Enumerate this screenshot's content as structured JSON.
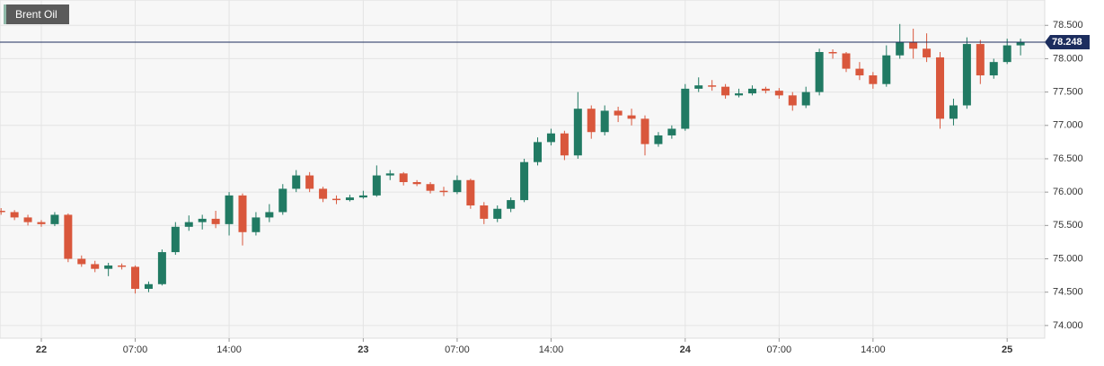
{
  "chart_data": {
    "type": "candlestick",
    "title": "Brent Oil",
    "x": [
      -3,
      -2,
      -1,
      0,
      1,
      2,
      3,
      4,
      5,
      6,
      7,
      8,
      9,
      10,
      11,
      12,
      13,
      14,
      15,
      16,
      17,
      18,
      19,
      20,
      21,
      22,
      23,
      24,
      25,
      26,
      27,
      28,
      29,
      30,
      31,
      32,
      33,
      34,
      35,
      36,
      37,
      38,
      39,
      40,
      41,
      42,
      43,
      44,
      45,
      46,
      47,
      48,
      49,
      50,
      51,
      52,
      53,
      54,
      55,
      56,
      57,
      58,
      59,
      60,
      61,
      62,
      63,
      64,
      65,
      66,
      67,
      68,
      69,
      70,
      71,
      72,
      73
    ],
    "open": [
      75.72,
      75.7,
      75.62,
      75.55,
      75.52,
      75.66,
      75.0,
      74.92,
      74.85,
      74.9,
      74.88,
      74.55,
      74.62,
      75.1,
      75.48,
      75.55,
      75.6,
      75.52,
      75.95,
      75.4,
      75.62,
      75.7,
      76.05,
      76.25,
      76.05,
      75.9,
      75.88,
      75.92,
      75.95,
      76.25,
      76.28,
      76.15,
      76.12,
      76.02,
      76.0,
      76.18,
      75.8,
      75.6,
      75.75,
      75.88,
      76.45,
      76.75,
      76.88,
      76.55,
      77.25,
      76.9,
      77.22,
      77.15,
      77.1,
      76.72,
      76.85,
      76.95,
      77.55,
      77.6,
      77.58,
      77.45,
      77.48,
      77.55,
      77.52,
      77.45,
      77.3,
      77.5,
      78.1,
      78.08,
      77.85,
      77.75,
      77.62,
      78.05,
      78.25,
      78.15,
      78.02,
      77.1,
      77.3,
      78.22,
      77.75,
      77.95,
      78.2
    ],
    "high": [
      75.76,
      75.73,
      75.66,
      75.58,
      75.7,
      75.68,
      75.05,
      74.97,
      74.94,
      74.93,
      74.9,
      74.66,
      75.14,
      75.55,
      75.65,
      75.66,
      75.72,
      76.0,
      75.98,
      75.7,
      75.82,
      76.12,
      76.33,
      76.3,
      76.08,
      75.95,
      75.96,
      76.02,
      76.4,
      76.33,
      76.3,
      76.18,
      76.15,
      76.08,
      76.25,
      76.2,
      75.85,
      75.8,
      75.92,
      76.5,
      76.82,
      76.95,
      76.92,
      77.5,
      77.3,
      77.3,
      77.28,
      77.25,
      77.15,
      76.9,
      77.0,
      77.62,
      77.72,
      77.68,
      77.62,
      77.55,
      77.6,
      77.58,
      77.56,
      77.5,
      77.58,
      78.15,
      78.14,
      78.1,
      77.95,
      77.8,
      78.2,
      78.52,
      78.45,
      78.38,
      78.1,
      77.4,
      78.32,
      78.28,
      78.0,
      78.3,
      78.3
    ],
    "low": [
      75.66,
      75.58,
      75.5,
      75.48,
      75.49,
      74.95,
      74.88,
      74.8,
      74.74,
      74.84,
      74.48,
      74.5,
      74.6,
      75.06,
      75.42,
      75.44,
      75.46,
      75.35,
      75.2,
      75.35,
      75.55,
      75.66,
      76.0,
      76.0,
      75.85,
      75.82,
      75.86,
      75.9,
      75.93,
      76.18,
      76.1,
      76.09,
      75.98,
      75.94,
      75.97,
      75.75,
      75.52,
      75.55,
      75.7,
      75.85,
      76.4,
      76.7,
      76.48,
      76.5,
      76.8,
      76.85,
      77.05,
      77.0,
      76.55,
      76.68,
      76.8,
      76.92,
      77.5,
      77.52,
      77.4,
      77.42,
      77.45,
      77.48,
      77.4,
      77.22,
      77.26,
      77.45,
      78.0,
      77.8,
      77.68,
      77.55,
      77.58,
      78.0,
      78.0,
      77.95,
      76.95,
      77.0,
      77.25,
      77.62,
      77.7,
      77.92,
      78.05
    ],
    "close": [
      75.7,
      75.62,
      75.55,
      75.52,
      75.66,
      75.0,
      74.92,
      74.85,
      74.9,
      74.88,
      74.55,
      74.62,
      75.1,
      75.48,
      75.55,
      75.6,
      75.52,
      75.95,
      75.4,
      75.62,
      75.7,
      76.05,
      76.25,
      76.05,
      75.9,
      75.88,
      75.92,
      75.95,
      76.25,
      76.28,
      76.15,
      76.12,
      76.02,
      76.0,
      76.18,
      75.8,
      75.6,
      75.75,
      75.88,
      76.45,
      76.75,
      76.88,
      76.55,
      77.25,
      76.9,
      77.22,
      77.15,
      77.1,
      76.72,
      76.85,
      76.95,
      77.55,
      77.6,
      77.58,
      77.45,
      77.48,
      77.55,
      77.52,
      77.45,
      77.3,
      77.5,
      78.1,
      78.08,
      77.85,
      77.75,
      77.62,
      78.05,
      78.25,
      78.15,
      78.02,
      77.1,
      77.3,
      78.22,
      77.75,
      77.95,
      78.2,
      78.248
    ],
    "up_color": "#217a63",
    "down_color": "#d9573c",
    "last_price": 78.248,
    "last_price_color": "#1c2d5e",
    "xlim": [
      -3.08,
      74.8
    ],
    "ylim": [
      73.81,
      78.88
    ],
    "grid": true,
    "xticks": [
      {
        "value": 0,
        "label": "22"
      },
      {
        "value": 7,
        "label": "07:00"
      },
      {
        "value": 14,
        "label": "14:00"
      },
      {
        "value": 24,
        "label": "23"
      },
      {
        "value": 31,
        "label": "07:00"
      },
      {
        "value": 38,
        "label": "14:00"
      },
      {
        "value": 48,
        "label": "24"
      },
      {
        "value": 55,
        "label": "07:00"
      },
      {
        "value": 62,
        "label": "14:00"
      },
      {
        "value": 72,
        "label": "25"
      }
    ],
    "yticks": [
      {
        "value": 74,
        "label": "74.000"
      },
      {
        "value": 74.5,
        "label": "74.500"
      },
      {
        "value": 75,
        "label": "75.000"
      },
      {
        "value": 75.5,
        "label": "75.500"
      },
      {
        "value": 76,
        "label": "76.000"
      },
      {
        "value": 76.5,
        "label": "76.500"
      },
      {
        "value": 77,
        "label": "77.000"
      },
      {
        "value": 77.5,
        "label": "77.500"
      },
      {
        "value": 78,
        "label": "78.000"
      },
      {
        "value": 78.5,
        "label": "78.500"
      }
    ]
  }
}
